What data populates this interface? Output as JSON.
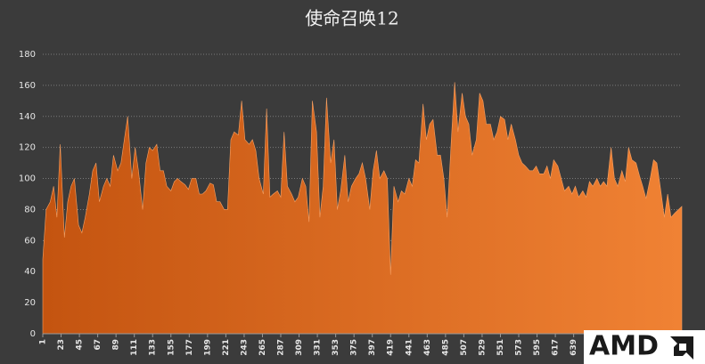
{
  "chart_data": {
    "type": "area",
    "title": "使命召唤12",
    "watermark": "AMD",
    "color_start": "#c45410",
    "color_end": "#f08234",
    "x": [
      1,
      5,
      10,
      14,
      18,
      22,
      27,
      31,
      35,
      39,
      44,
      48,
      52,
      57,
      61,
      65,
      69,
      74,
      78,
      82,
      86,
      91,
      95,
      99,
      103,
      108,
      112,
      116,
      121,
      125,
      129,
      133,
      138,
      142,
      146,
      150,
      155,
      159,
      163,
      167,
      172,
      176,
      180,
      185,
      189,
      193,
      197,
      202,
      206,
      210,
      214,
      219,
      223,
      227,
      231,
      236,
      240,
      244,
      249,
      253,
      257,
      261,
      266,
      270,
      274,
      278,
      283,
      287,
      291,
      295,
      300,
      304,
      308,
      313,
      317,
      321,
      325,
      330,
      334,
      338,
      342,
      347,
      351,
      355,
      359,
      364,
      368,
      372,
      377,
      381,
      385,
      389,
      394,
      398,
      402,
      406,
      411,
      415,
      419,
      423,
      428,
      432,
      436,
      441,
      445,
      449,
      453,
      458,
      462,
      466,
      470,
      475,
      479,
      483,
      487,
      492,
      496,
      500,
      505,
      509,
      513,
      517,
      522,
      526,
      530,
      534,
      539,
      543,
      547,
      551,
      556,
      560,
      564,
      569,
      573,
      577,
      581,
      586,
      590,
      594,
      598,
      603,
      607,
      611,
      615,
      620,
      624,
      628,
      633,
      637,
      641,
      645,
      650,
      654,
      658,
      662,
      667,
      671,
      675,
      679,
      684,
      688,
      692,
      697,
      701,
      705,
      709,
      714,
      718,
      722,
      726,
      731,
      735,
      739,
      743,
      748,
      752,
      756,
      761,
      765,
      769
    ],
    "values": [
      48,
      80,
      85,
      95,
      75,
      122,
      62,
      85,
      95,
      100,
      70,
      65,
      75,
      90,
      105,
      110,
      85,
      95,
      100,
      95,
      115,
      105,
      110,
      125,
      140,
      100,
      120,
      105,
      80,
      110,
      120,
      118,
      122,
      105,
      105,
      95,
      92,
      98,
      100,
      98,
      96,
      93,
      100,
      100,
      90,
      90,
      92,
      97,
      96,
      85,
      85,
      80,
      80,
      125,
      130,
      128,
      150,
      125,
      122,
      125,
      118,
      100,
      90,
      145,
      88,
      90,
      92,
      88,
      130,
      95,
      90,
      85,
      88,
      100,
      95,
      72,
      150,
      130,
      75,
      95,
      152,
      110,
      125,
      80,
      92,
      115,
      85,
      95,
      100,
      103,
      110,
      100,
      80,
      105,
      118,
      100,
      105,
      100,
      38,
      95,
      85,
      92,
      90,
      100,
      95,
      112,
      110,
      148,
      125,
      135,
      138,
      115,
      115,
      100,
      75,
      125,
      162,
      130,
      155,
      140,
      135,
      115,
      125,
      155,
      150,
      135,
      135,
      125,
      130,
      140,
      138,
      125,
      135,
      125,
      115,
      110,
      108,
      105,
      105,
      108,
      103,
      103,
      108,
      100,
      112,
      108,
      100,
      92,
      95,
      90,
      95,
      88,
      92,
      88,
      98,
      95,
      100,
      95,
      98,
      95,
      120,
      100,
      95,
      105,
      98,
      120,
      112,
      110,
      102,
      95,
      87,
      100,
      112,
      110,
      95,
      75,
      90,
      75,
      78,
      80,
      82
    ],
    "xlim": [
      1,
      769
    ],
    "xticks": [
      1,
      23,
      45,
      67,
      89,
      111,
      133,
      155,
      177,
      199,
      221,
      243,
      265,
      287,
      309,
      331,
      353,
      375,
      397,
      419,
      441,
      463,
      485,
      507,
      529,
      551,
      573,
      595,
      617,
      639
    ],
    "ylim": [
      0,
      180
    ],
    "yticks": [
      0,
      20,
      40,
      60,
      80,
      100,
      120,
      140,
      160,
      180
    ],
    "grid": true
  }
}
